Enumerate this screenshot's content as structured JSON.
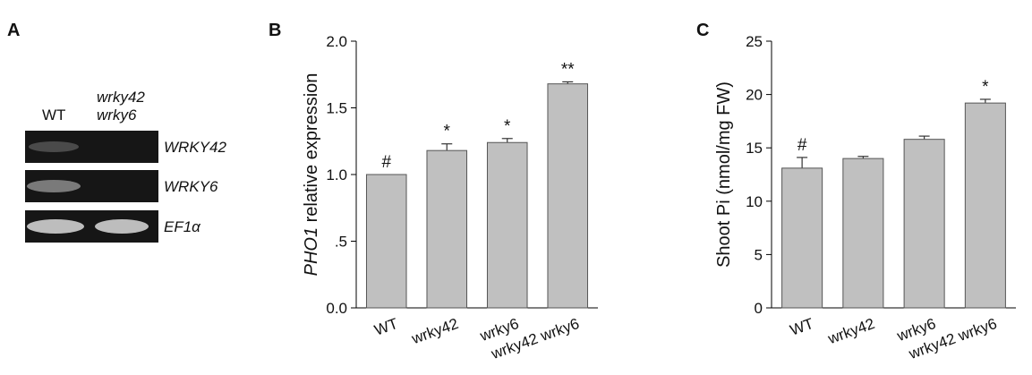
{
  "gel": {
    "panel_label": "A",
    "lanes": [
      [
        "WT"
      ],
      [
        "wrky42",
        "wrky6"
      ]
    ],
    "genes": [
      "WRKY42",
      "WRKY6",
      "EF1α"
    ]
  },
  "chart_data": [
    {
      "type": "bar",
      "panel_label": "B",
      "ylabel": {
        "italic": "PHO1",
        "rest": "relative expression"
      },
      "categories": [
        "WT",
        "wrky42",
        "wrky6",
        "wrky42 wrky6"
      ],
      "values": [
        1.0,
        1.18,
        1.24,
        1.68
      ],
      "errors": [
        0,
        0.05,
        0.03,
        0.015
      ],
      "annotations": [
        "#",
        "*",
        "*",
        "**"
      ],
      "color": "#c0c0c0",
      "ylim": [
        0,
        2
      ],
      "yticks": [
        {
          "value": 0,
          "label": "0.0"
        },
        {
          "value": 0.5,
          "label": ".5"
        },
        {
          "value": 1,
          "label": "1.0"
        },
        {
          "value": 1.5,
          "label": "1.5"
        },
        {
          "value": 2,
          "label": "2.0"
        }
      ]
    },
    {
      "type": "bar",
      "panel_label": "C",
      "ylabel": "Shoot Pi (nmol/mg FW)",
      "categories": [
        "WT",
        "wrky42",
        "wrky6",
        "wrky42 wrky6"
      ],
      "values": [
        13.1,
        14.0,
        15.8,
        19.2
      ],
      "errors": [
        1.0,
        0.2,
        0.3,
        0.35
      ],
      "annotations": [
        "#",
        null,
        null,
        "*"
      ],
      "color": "#c0c0c0",
      "ylim": [
        0,
        25
      ],
      "yticks": [
        0,
        5,
        10,
        15,
        20,
        25
      ]
    }
  ]
}
